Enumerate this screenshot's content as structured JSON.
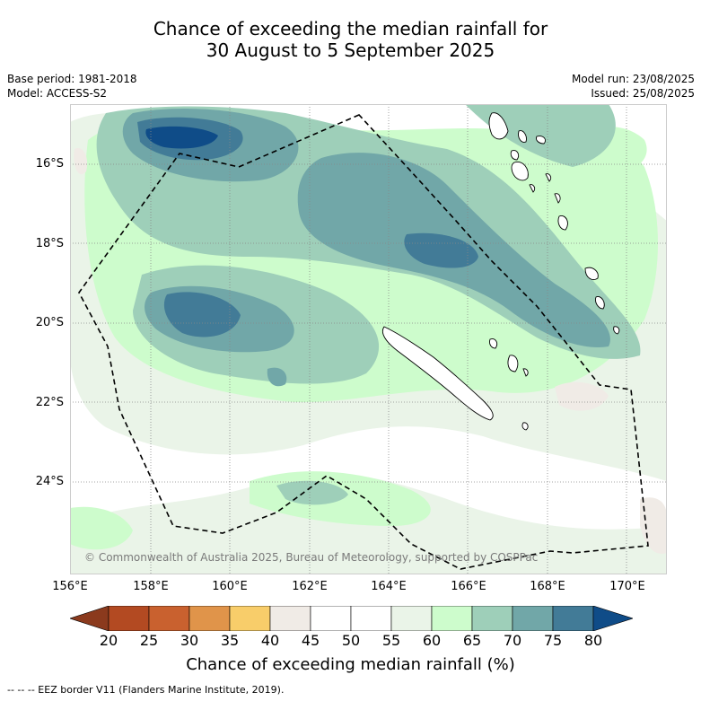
{
  "header": {
    "title_line1": "Chance of exceeding the median rainfall for",
    "title_line2": "30 August to 5 September 2025",
    "base_period": "Base period: 1981-2018",
    "model": "Model: ACCESS-S2",
    "model_run": "Model run: 23/08/2025",
    "issued": "Issued: 25/08/2025"
  },
  "map": {
    "lat_labels": [
      "16°S",
      "18°S",
      "20°S",
      "22°S",
      "24°S"
    ],
    "lon_labels": [
      "156°E",
      "158°E",
      "160°E",
      "162°E",
      "164°E",
      "166°E",
      "168°E",
      "170°E"
    ],
    "copyright": "© Commonwealth of Australia 2025, Bureau of Meteorology, supported by COSPPac",
    "ocean_color": "#ffffff",
    "land_outline_color": "#000000",
    "eez_line_color": "#000000"
  },
  "colorbar": {
    "ticks": [
      "20",
      "25",
      "30",
      "35",
      "40",
      "45",
      "50",
      "55",
      "60",
      "65",
      "70",
      "75",
      "80"
    ],
    "colors": [
      "#b34a22",
      "#c9612f",
      "#e0944a",
      "#f8cd6a",
      "#f0ebe6",
      "#ffffff",
      "#ffffff",
      "#eaf4e8",
      "#cdfccc",
      "#9ecfb9",
      "#71a7a8",
      "#427b97"
    ],
    "under_color": "#8b3a1d",
    "over_color": "#0f4c88",
    "label": "Chance of exceeding median rainfall (%)"
  },
  "legend": {
    "eez_text": "--  --  -- EEZ border V11 (Flanders Marine Institute, 2019)."
  }
}
